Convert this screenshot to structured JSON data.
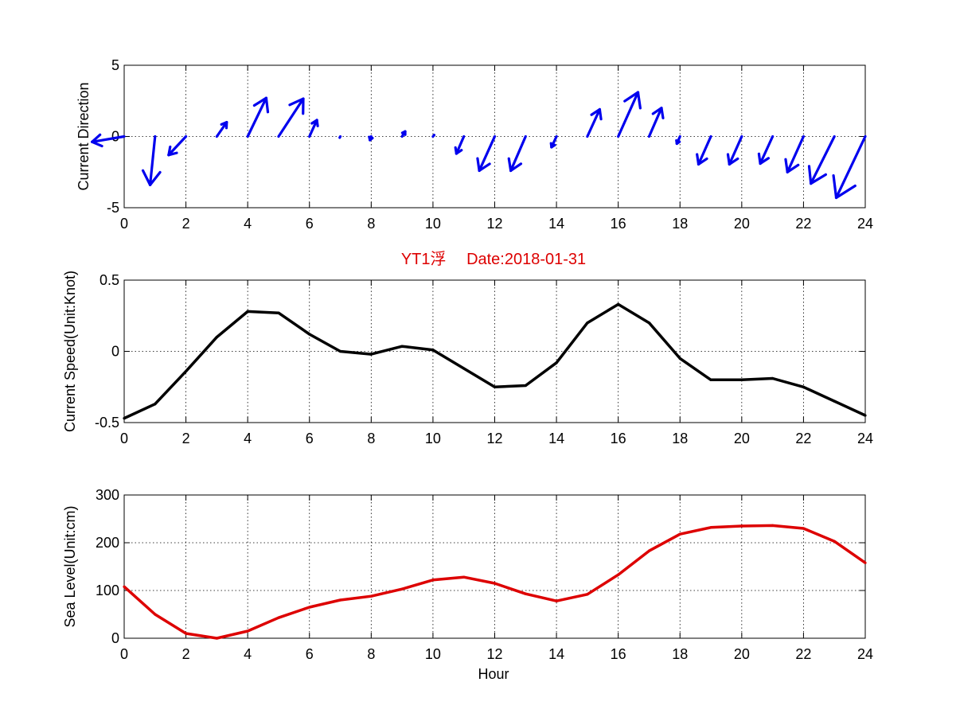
{
  "page": {
    "title": "YT1浮　 Date:2018-01-31"
  },
  "colors": {
    "arrows": "#0000ee",
    "speed_line": "#000000",
    "sea_line": "#dd0000",
    "title": "#dd0000"
  },
  "chart_data": [
    {
      "type": "quiver",
      "title": "",
      "xlabel": "",
      "ylabel": "Current Direction",
      "xlim": [
        0,
        24
      ],
      "ylim": [
        -5,
        5
      ],
      "xticks": [
        "0",
        "2",
        "4",
        "6",
        "8",
        "10",
        "12",
        "14",
        "16",
        "18",
        "20",
        "22",
        "24"
      ],
      "yticks": [
        "-5",
        "0",
        "5"
      ],
      "grid": true,
      "x": [
        0,
        1,
        2,
        3,
        4,
        5,
        6,
        7,
        8,
        9,
        10,
        11,
        12,
        13,
        14,
        15,
        16,
        17,
        18,
        19,
        20,
        21,
        22,
        23,
        24
      ],
      "u": [
        -0.52,
        -0.08,
        -0.28,
        0.16,
        0.3,
        0.4,
        0.12,
        -0.01,
        -0.02,
        0.05,
        0.02,
        -0.12,
        -0.25,
        -0.24,
        -0.08,
        0.2,
        0.32,
        0.2,
        -0.05,
        -0.2,
        -0.2,
        -0.2,
        -0.26,
        -0.38,
        -0.47
      ],
      "v": [
        -0.38,
        -3.4,
        -1.3,
        1.0,
        2.7,
        2.65,
        1.15,
        -0.08,
        -0.25,
        0.35,
        0.1,
        -1.2,
        -2.4,
        -2.4,
        -0.75,
        1.9,
        3.1,
        2.0,
        -0.5,
        -1.95,
        -1.95,
        -1.9,
        -2.5,
        -3.3,
        -4.3
      ]
    },
    {
      "type": "line",
      "title": "YT1浮　 Date:2018-01-31",
      "xlabel": "",
      "ylabel": "Current Speed(Unit:Knot)",
      "xlim": [
        0,
        24
      ],
      "ylim": [
        -0.5,
        0.5
      ],
      "xticks": [
        "0",
        "2",
        "4",
        "6",
        "8",
        "10",
        "12",
        "14",
        "16",
        "18",
        "20",
        "22",
        "24"
      ],
      "yticks": [
        "-0.5",
        "0",
        "0.5"
      ],
      "grid": true,
      "x": [
        0,
        1,
        2,
        3,
        4,
        5,
        6,
        7,
        8,
        9,
        10,
        11,
        12,
        13,
        14,
        15,
        16,
        17,
        18,
        19,
        20,
        21,
        22,
        23,
        24
      ],
      "values": [
        -0.47,
        -0.37,
        -0.14,
        0.1,
        0.28,
        0.27,
        0.12,
        0.0,
        -0.02,
        0.035,
        0.01,
        -0.12,
        -0.25,
        -0.24,
        -0.08,
        0.2,
        0.33,
        0.2,
        -0.05,
        -0.2,
        -0.2,
        -0.19,
        -0.25,
        -0.35,
        -0.45
      ]
    },
    {
      "type": "line",
      "title": "",
      "xlabel": "Hour",
      "ylabel": "Sea Level(Unit:cm)",
      "xlim": [
        0,
        24
      ],
      "ylim": [
        0,
        300
      ],
      "xticks": [
        "0",
        "2",
        "4",
        "6",
        "8",
        "10",
        "12",
        "14",
        "16",
        "18",
        "20",
        "22",
        "24"
      ],
      "yticks": [
        "0",
        "100",
        "200",
        "300"
      ],
      "grid": true,
      "x": [
        0,
        1,
        2,
        3,
        4,
        5,
        6,
        7,
        8,
        9,
        10,
        11,
        12,
        13,
        14,
        15,
        16,
        17,
        18,
        19,
        20,
        21,
        22,
        23,
        24
      ],
      "values": [
        108,
        50,
        10,
        0,
        15,
        43,
        65,
        80,
        88,
        103,
        122,
        128,
        115,
        93,
        78,
        92,
        133,
        183,
        218,
        232,
        235,
        236,
        230,
        203,
        158
      ]
    }
  ]
}
